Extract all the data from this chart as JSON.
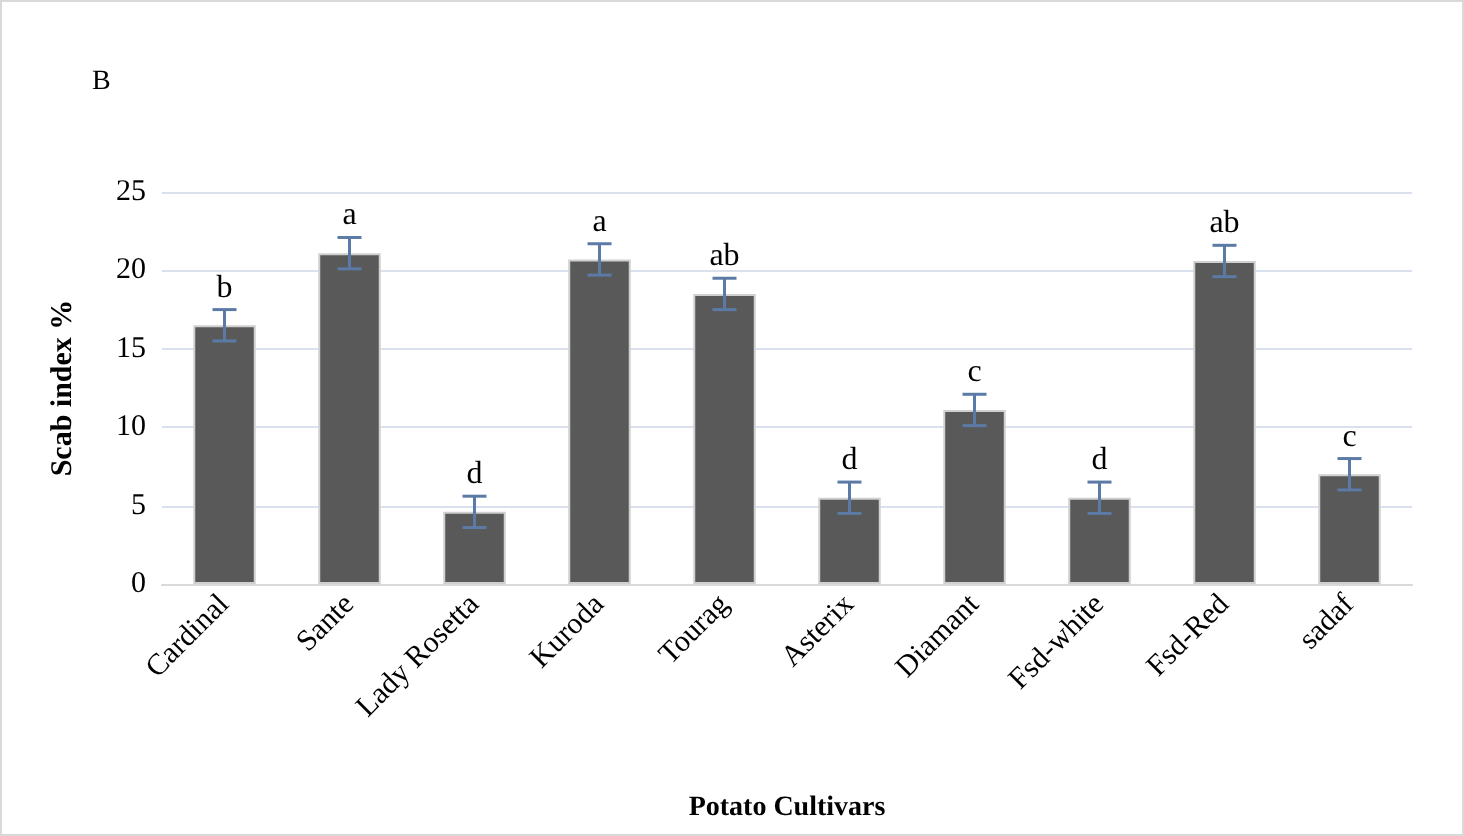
{
  "chart_data": {
    "type": "bar",
    "title": "B",
    "xlabel": "Potato Cultivars",
    "ylabel": "Scab index %",
    "categories": [
      "Cardinal",
      "Sante",
      "Lady Rosetta",
      "Kuroda",
      "Tourag",
      "Asterix",
      "Diamant",
      "Fsd-white",
      "Fsd-Red",
      "sadaf"
    ],
    "values": [
      16.5,
      21.1,
      4.6,
      20.7,
      18.5,
      5.5,
      11.1,
      5.5,
      20.6,
      7.0
    ],
    "errors": [
      1,
      1,
      1,
      1,
      1,
      1,
      1,
      1,
      1,
      1
    ],
    "color": "#595959",
    "ylim": [
      0,
      25
    ],
    "yticks": [
      0,
      5,
      10,
      15,
      20,
      25
    ],
    "grid": "y",
    "annotations": [
      {
        "text": "b",
        "x": "Cardinal",
        "y": 17.5
      },
      {
        "text": "a",
        "x": "Sante",
        "y": 22.1
      },
      {
        "text": "d",
        "x": "Lady Rosetta",
        "y": 5.6
      },
      {
        "text": "a",
        "x": "Kuroda",
        "y": 21.7
      },
      {
        "text": "ab",
        "x": "Tourag",
        "y": 19.5
      },
      {
        "text": "d",
        "x": "Asterix",
        "y": 6.5
      },
      {
        "text": "c",
        "x": "Diamant",
        "y": 12.1
      },
      {
        "text": "d",
        "x": "Fsd-white",
        "y": 6.5
      },
      {
        "text": "ab",
        "x": "Fsd-Red",
        "y": 21.6
      },
      {
        "text": "c",
        "x": "sadaf",
        "y": 8.0
      }
    ]
  }
}
